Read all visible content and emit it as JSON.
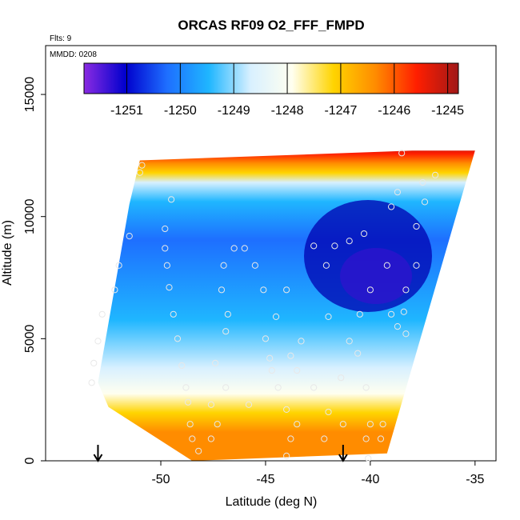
{
  "chart_data": {
    "type": "heatmap",
    "title": "ORCAS RF09 O2_FFF_FMPD",
    "annotations": {
      "flights": "Flts: 9",
      "date": "MMDD: 0208"
    },
    "xlabel": "Latitude (deg N)",
    "ylabel": "Altitude (m)",
    "xlim": [
      -55.5,
      -34
    ],
    "ylim": [
      0,
      17000
    ],
    "x_ticks": [
      -50,
      -45,
      -40,
      -35
    ],
    "x_tick_labels": [
      "-50",
      "-45",
      "-40",
      "-35"
    ],
    "y_ticks": [
      0,
      5000,
      10000,
      15000
    ],
    "y_tick_labels": [
      "0",
      "5000",
      "10000",
      "15000"
    ],
    "colorbar": {
      "range": [
        -1251.8,
        -1244.8
      ],
      "ticks": [
        -1251,
        -1250,
        -1249,
        -1248,
        -1247,
        -1246,
        -1245
      ],
      "tick_labels": [
        "-1251",
        "-1250",
        "-1249",
        "-1248",
        "-1247",
        "-1246",
        "-1245"
      ],
      "colors": [
        "#8a2be2",
        "#0000cd",
        "#1e6fff",
        "#1fb6ff",
        "#d8f0ff",
        "#fffff0",
        "#ffd400",
        "#ff8c00",
        "#ff1e00",
        "#a01818"
      ]
    },
    "grid": false,
    "region_outline_lat_alt": [
      [
        -51.0,
        12300
      ],
      [
        -38.0,
        12700
      ],
      [
        -35.0,
        12700
      ],
      [
        -39.2,
        300
      ],
      [
        -48.5,
        0
      ],
      [
        -52.5,
        2200
      ],
      [
        -53.0,
        3200
      ],
      [
        -51.5,
        10500
      ]
    ],
    "arrows_latitude": [
      -53.0,
      -41.3
    ],
    "sample_points": [
      [
        -50.9,
        12100
      ],
      [
        -51.0,
        11800
      ],
      [
        -49.5,
        10700
      ],
      [
        -49.8,
        9500
      ],
      [
        -51.5,
        9200
      ],
      [
        -49.8,
        8700
      ],
      [
        -52.0,
        8000
      ],
      [
        -49.7,
        8000
      ],
      [
        -47.0,
        8000
      ],
      [
        -46.5,
        8700
      ],
      [
        -46.0,
        8700
      ],
      [
        -45.5,
        8000
      ],
      [
        -44.0,
        7000
      ],
      [
        -52.2,
        7000
      ],
      [
        -49.6,
        7100
      ],
      [
        -47.1,
        7000
      ],
      [
        -45.1,
        7000
      ],
      [
        -52.8,
        6000
      ],
      [
        -49.4,
        6000
      ],
      [
        -46.8,
        6000
      ],
      [
        -44.5,
        5900
      ],
      [
        -42.0,
        5900
      ],
      [
        -53.0,
        4900
      ],
      [
        -49.2,
        5000
      ],
      [
        -46.9,
        5300
      ],
      [
        -45.0,
        5000
      ],
      [
        -43.3,
        4900
      ],
      [
        -41.0,
        4900
      ],
      [
        -40.6,
        4400
      ],
      [
        -43.8,
        4300
      ],
      [
        -44.8,
        4200
      ],
      [
        -53.2,
        4000
      ],
      [
        -49.0,
        3900
      ],
      [
        -47.4,
        4000
      ],
      [
        -44.7,
        3700
      ],
      [
        -43.5,
        3700
      ],
      [
        -41.4,
        3400
      ],
      [
        -53.3,
        3200
      ],
      [
        -48.8,
        3000
      ],
      [
        -46.9,
        3000
      ],
      [
        -44.4,
        3000
      ],
      [
        -42.7,
        3000
      ],
      [
        -40.2,
        3000
      ],
      [
        -48.7,
        2400
      ],
      [
        -47.6,
        2300
      ],
      [
        -45.8,
        2300
      ],
      [
        -44.0,
        2100
      ],
      [
        -42.0,
        2000
      ],
      [
        -48.6,
        1500
      ],
      [
        -47.3,
        1500
      ],
      [
        -43.5,
        1500
      ],
      [
        -41.3,
        1500
      ],
      [
        -40.0,
        1500
      ],
      [
        -39.4,
        1500
      ],
      [
        -48.5,
        900
      ],
      [
        -47.6,
        900
      ],
      [
        -43.8,
        900
      ],
      [
        -42.2,
        900
      ],
      [
        -40.2,
        900
      ],
      [
        -39.5,
        900
      ],
      [
        -48.2,
        400
      ],
      [
        -44.0,
        200
      ],
      [
        -40.1,
        100
      ],
      [
        -41.0,
        9000
      ],
      [
        -42.7,
        8800
      ],
      [
        -41.7,
        8800
      ],
      [
        -42.1,
        8000
      ],
      [
        -39.2,
        8000
      ],
      [
        -37.8,
        8000
      ],
      [
        -40.0,
        7000
      ],
      [
        -38.3,
        7000
      ],
      [
        -39.0,
        6000
      ],
      [
        -40.5,
        6000
      ],
      [
        -38.4,
        6100
      ],
      [
        -38.5,
        12600
      ],
      [
        -36.9,
        11700
      ],
      [
        -37.5,
        11400
      ],
      [
        -38.7,
        11000
      ],
      [
        -39.0,
        10400
      ],
      [
        -37.4,
        10600
      ],
      [
        -37.8,
        9600
      ],
      [
        -40.3,
        9300
      ],
      [
        -38.7,
        5500
      ],
      [
        -38.3,
        5200
      ]
    ]
  }
}
